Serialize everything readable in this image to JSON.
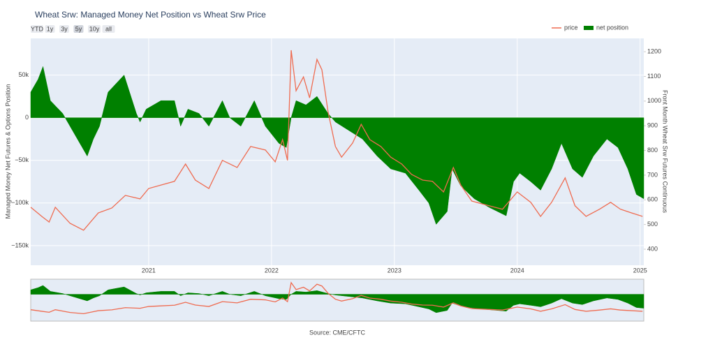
{
  "chart_data": {
    "type": "line-area",
    "title": "Wheat Srw: Managed Money Net Position vs Wheat Srw Price",
    "range_buttons": [
      "YTD",
      "1y",
      "3y",
      "5y",
      "10y",
      "all"
    ],
    "y_label": "Managed Money Net Futures & Options Position",
    "y2_label": "Front Month Wheat Srw Futures Continuous",
    "source": "Source: CME/CFTC",
    "xlim": [
      2020.04,
      2025.03
    ],
    "xticks": [
      2021,
      2022,
      2023,
      2024,
      2025
    ],
    "ylim": [
      -173000,
      93000
    ],
    "yticks": [
      {
        "value": -150000,
        "label": "−150k"
      },
      {
        "value": -100000,
        "label": "−100k"
      },
      {
        "value": -50000,
        "label": "−50k"
      },
      0,
      {
        "value": 50000,
        "label": "50k"
      }
    ],
    "y2lim": [
      335,
      1254
    ],
    "y2ticks": [
      400,
      500,
      600,
      700,
      800,
      900,
      1000,
      1100,
      1200
    ],
    "grid": true,
    "legend": "top-right",
    "series": [
      {
        "name": "price",
        "color": "#ef6b50",
        "axis": "y2",
        "kind": "line",
        "x": [
          2020.04,
          2020.13,
          2020.19,
          2020.24,
          2020.36,
          2020.47,
          2020.59,
          2020.7,
          2020.81,
          2020.93,
          2021.0,
          2021.1,
          2021.21,
          2021.3,
          2021.38,
          2021.49,
          2021.6,
          2021.72,
          2021.83,
          2021.95,
          2022.03,
          2022.09,
          2022.13,
          2022.16,
          2022.2,
          2022.26,
          2022.31,
          2022.37,
          2022.41,
          2022.46,
          2022.52,
          2022.57,
          2022.66,
          2022.73,
          2022.8,
          2022.89,
          2022.97,
          2023.06,
          2023.14,
          2023.23,
          2023.31,
          2023.4,
          2023.48,
          2023.54,
          2023.63,
          2023.77,
          2023.88,
          2024.0,
          2024.11,
          2024.19,
          2024.28,
          2024.39,
          2024.47,
          2024.56,
          2024.67,
          2024.76,
          2024.84,
          2024.93,
          2025.02
        ],
        "values": [
          570,
          533,
          510,
          570,
          505,
          477,
          547,
          567,
          618,
          604,
          646,
          660,
          675,
          745,
          680,
          646,
          760,
          731,
          816,
          802,
          754,
          844,
          760,
          1206,
          1042,
          1098,
          1013,
          1169,
          1127,
          957,
          816,
          773,
          830,
          906,
          844,
          816,
          773,
          745,
          703,
          680,
          675,
          632,
          731,
          660,
          595,
          576,
          562,
          632,
          590,
          533,
          590,
          689,
          576,
          533,
          562,
          590,
          562,
          547,
          533
        ]
      },
      {
        "name": "net position",
        "color": "#008000",
        "axis": "y",
        "kind": "area",
        "x": [
          2020.04,
          2020.1,
          2020.14,
          2020.2,
          2020.3,
          2020.4,
          2020.5,
          2020.55,
          2020.6,
          2020.67,
          2020.8,
          2020.9,
          2020.93,
          2020.98,
          2021.1,
          2021.21,
          2021.26,
          2021.32,
          2021.41,
          2021.49,
          2021.6,
          2021.66,
          2021.75,
          2021.86,
          2021.95,
          2022.06,
          2022.12,
          2022.16,
          2022.2,
          2022.28,
          2022.37,
          2022.46,
          2022.52,
          2022.63,
          2022.74,
          2022.86,
          2022.97,
          2023.09,
          2023.2,
          2023.28,
          2023.34,
          2023.43,
          2023.47,
          2023.54,
          2023.65,
          2023.77,
          2023.91,
          2023.97,
          2024.02,
          2024.11,
          2024.19,
          2024.28,
          2024.36,
          2024.45,
          2024.53,
          2024.62,
          2024.73,
          2024.82,
          2024.9,
          2024.97,
          2025.03
        ],
        "values": [
          30000,
          45000,
          60000,
          20000,
          5000,
          -20000,
          -45000,
          -25000,
          -10000,
          30000,
          50000,
          5000,
          -5000,
          10000,
          20000,
          20000,
          -10000,
          10000,
          5000,
          -10000,
          20000,
          0,
          -10000,
          20000,
          -10000,
          -30000,
          -35000,
          0,
          20000,
          15000,
          25000,
          5000,
          -5000,
          -15000,
          -25000,
          -45000,
          -60000,
          -65000,
          -85000,
          -100000,
          -125000,
          -110000,
          -60000,
          -80000,
          -95000,
          -105000,
          -115000,
          -75000,
          -65000,
          -75000,
          -85000,
          -60000,
          -30000,
          -60000,
          -70000,
          -45000,
          -25000,
          -35000,
          -60000,
          -90000,
          -95000
        ]
      }
    ]
  }
}
